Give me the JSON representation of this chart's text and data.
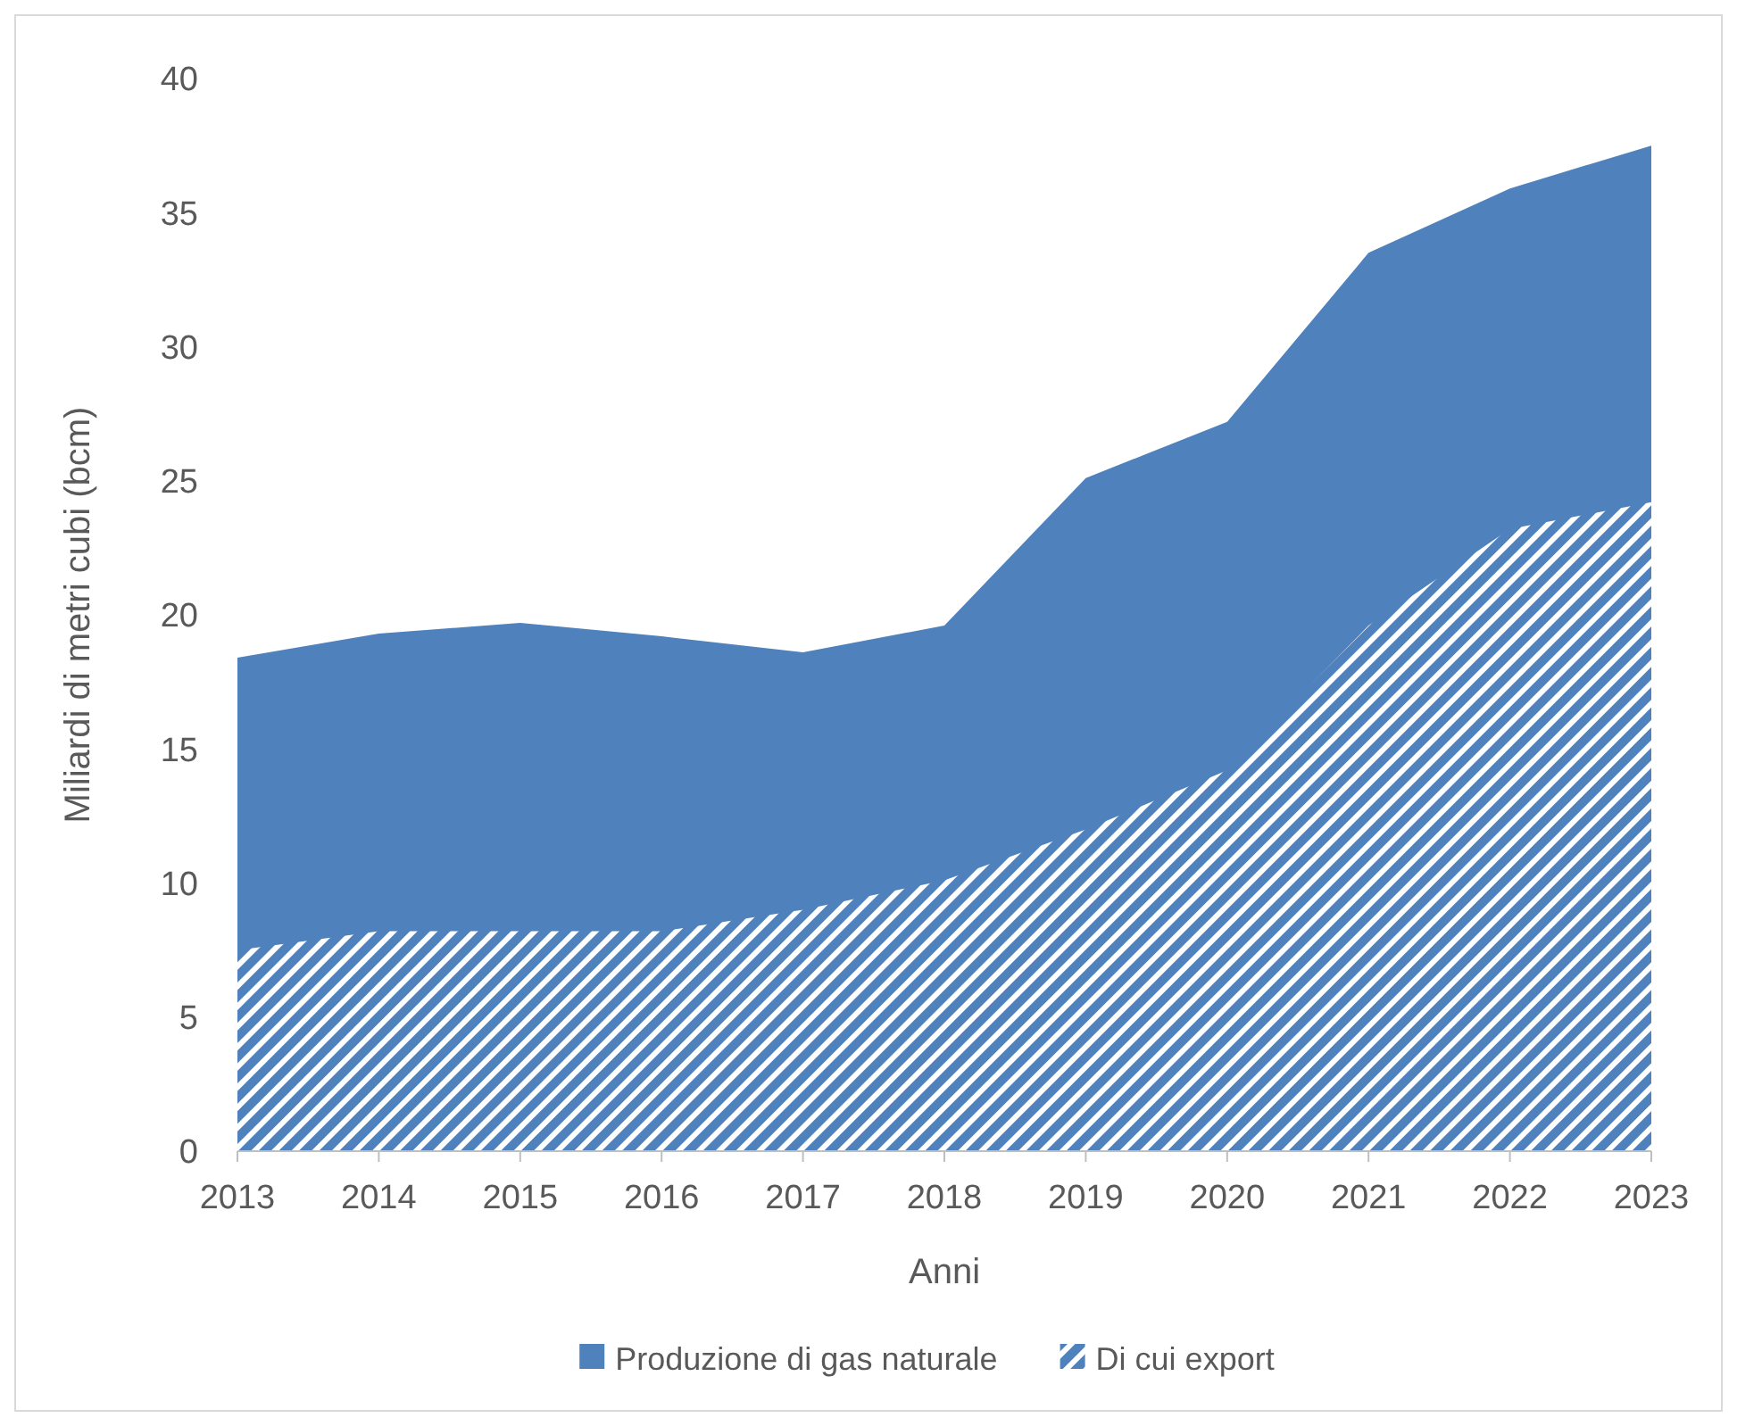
{
  "chart_data": {
    "type": "area",
    "xlabel": "Anni",
    "ylabel": "Miliardi di metri cubi (bcm)",
    "categories": [
      "2013",
      "2014",
      "2015",
      "2016",
      "2017",
      "2018",
      "2019",
      "2020",
      "2021",
      "2022",
      "2023"
    ],
    "series": [
      {
        "name": "Produzione di gas naturale",
        "color": "#4f81bd",
        "values": [
          18.4,
          19.3,
          19.7,
          19.2,
          18.6,
          19.6,
          25.1,
          27.2,
          33.5,
          35.9,
          37.5
        ]
      },
      {
        "name": "Di cui export",
        "color": "#4f81bd",
        "values": [
          7.5,
          8.2,
          8.2,
          8.2,
          9.0,
          10.1,
          12.0,
          14.2,
          19.6,
          23.2,
          24.2
        ]
      }
    ],
    "ylim": [
      0,
      40
    ],
    "yticks": [
      0,
      5,
      10,
      15,
      20,
      25,
      30,
      35,
      40
    ],
    "grid": false,
    "legend": "bottom"
  }
}
